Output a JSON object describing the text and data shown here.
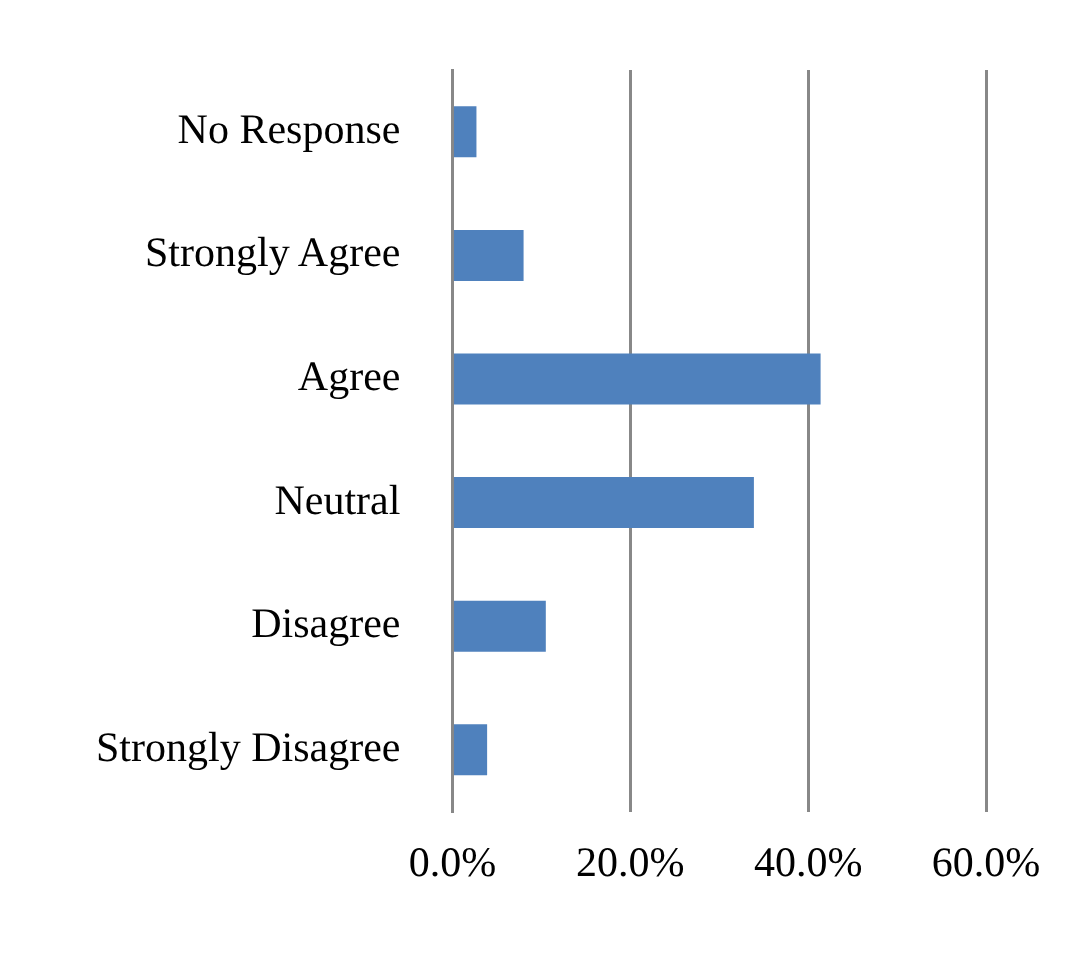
{
  "chart_data": {
    "type": "bar",
    "orientation": "horizontal",
    "categories": [
      "No Response",
      "Strongly Agree",
      "Agree",
      "Neutral",
      "Disagree",
      "Strongly Disagree"
    ],
    "values": [
      2.7,
      8.0,
      41.4,
      33.9,
      10.5,
      3.9
    ],
    "color": "#4f81bd",
    "xlim": [
      0,
      60
    ],
    "xticks": [
      {
        "value": 0,
        "label": "0.0%"
      },
      {
        "value": 20,
        "label": "20.0%"
      },
      {
        "value": 40,
        "label": "40.0%"
      },
      {
        "value": 60,
        "label": "60.0%"
      }
    ],
    "grid": "x",
    "legend": false
  }
}
